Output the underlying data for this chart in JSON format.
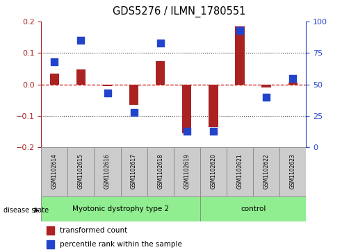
{
  "title": "GDS5276 / ILMN_1780551",
  "samples": [
    "GSM1102614",
    "GSM1102615",
    "GSM1102616",
    "GSM1102617",
    "GSM1102618",
    "GSM1102619",
    "GSM1102620",
    "GSM1102621",
    "GSM1102622",
    "GSM1102623"
  ],
  "red_values": [
    0.035,
    0.048,
    -0.005,
    -0.065,
    0.075,
    -0.155,
    -0.135,
    0.185,
    -0.01,
    0.005
  ],
  "blue_pct": [
    68,
    85,
    43,
    28,
    83,
    13,
    13,
    93,
    40,
    55
  ],
  "ylim": [
    -0.2,
    0.2
  ],
  "yticks_left": [
    -0.2,
    -0.1,
    0.0,
    0.1,
    0.2
  ],
  "yticks_right": [
    0,
    25,
    50,
    75,
    100
  ],
  "disease_groups": [
    {
      "label": "Myotonic dystrophy type 2",
      "start": 0,
      "end": 5,
      "color": "#90EE90"
    },
    {
      "label": "control",
      "start": 6,
      "end": 9,
      "color": "#90EE90"
    }
  ],
  "red_color": "#AA2222",
  "blue_color": "#2244CC",
  "bar_width": 0.35,
  "dot_size": 55,
  "hline_color": "#CC0000",
  "grid_color": "#333333",
  "bg_color": "#FFFFFF",
  "label_area_color": "#CCCCCC",
  "disease_state_text": "disease state",
  "legend_red": "transformed count",
  "legend_blue": "percentile rank within the sample"
}
